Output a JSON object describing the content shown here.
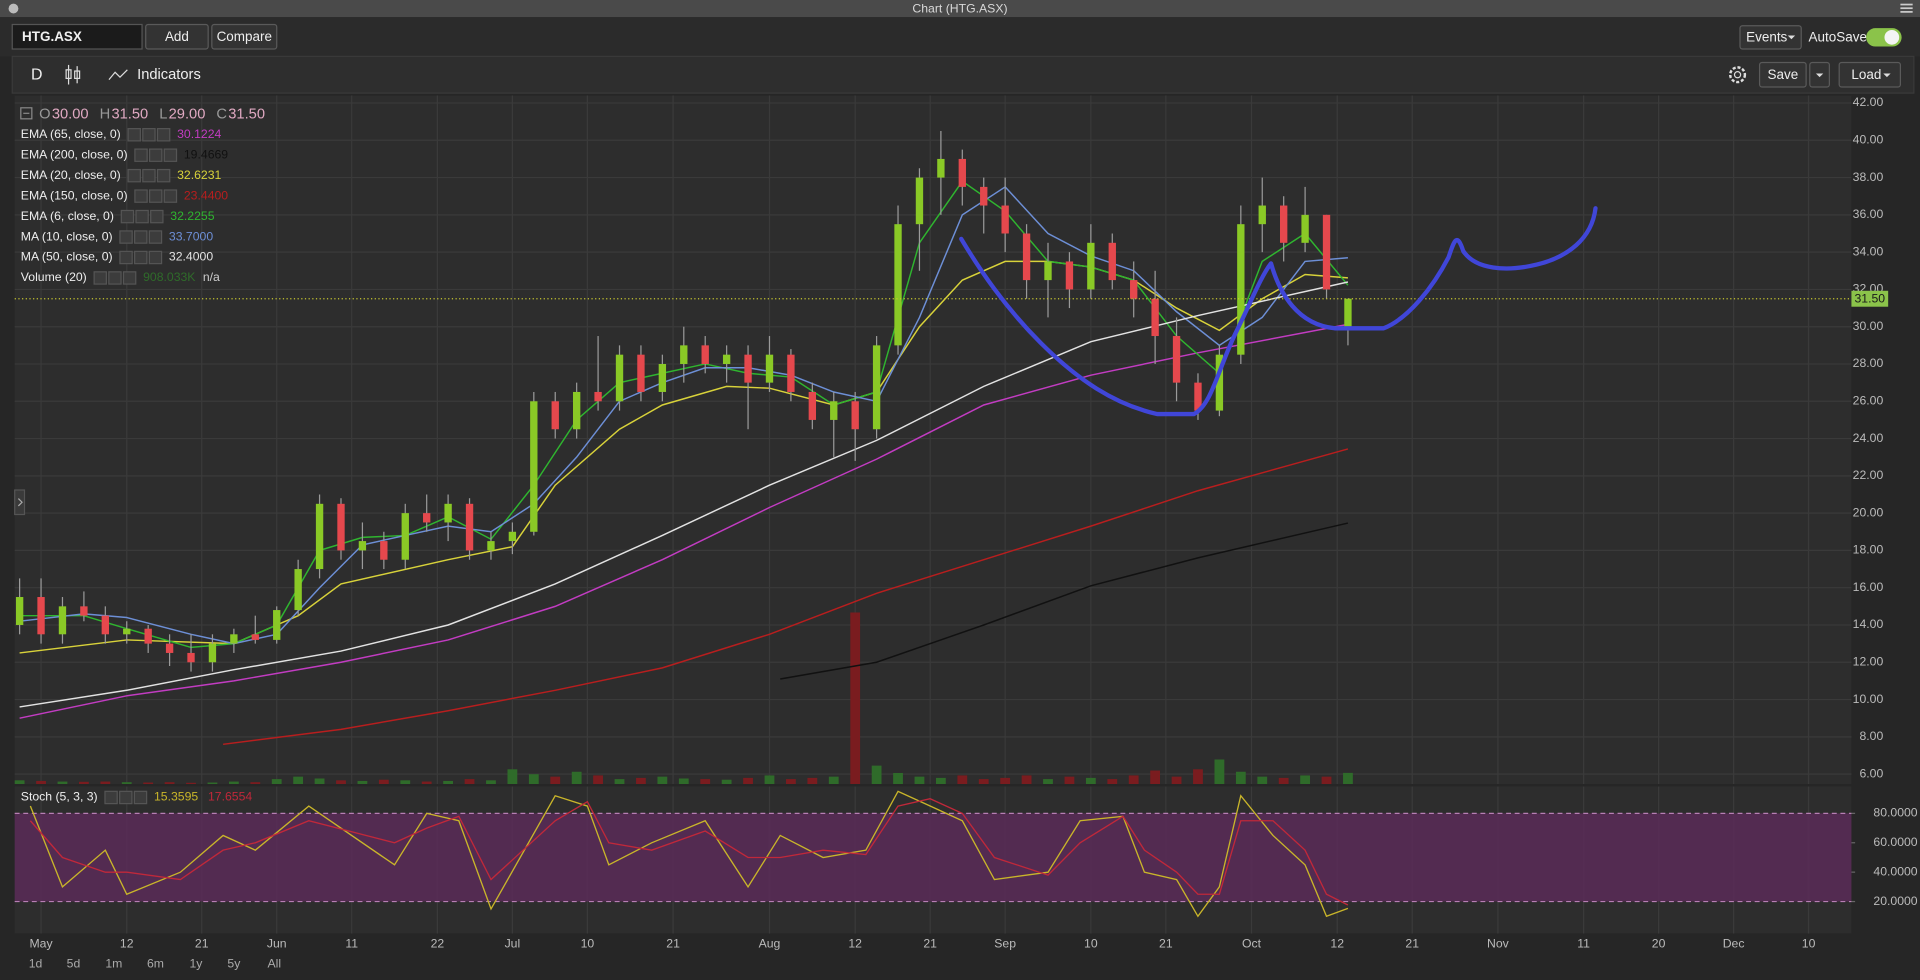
{
  "window": {
    "title": "Chart (HTG.ASX)"
  },
  "toolbar": {
    "symbol": "HTG.ASX",
    "buttons": [
      "Add",
      "Compare"
    ],
    "events": "Events",
    "autosave": "AutoSave"
  },
  "chart_toolbar": {
    "period": "D",
    "indicators": "Indicators",
    "save": "Save",
    "load": "Load"
  },
  "range_buttons": [
    "1d",
    "5d",
    "1m",
    "6m",
    "1y",
    "5y",
    "All"
  ],
  "chart_data": [
    {
      "type": "candlestick",
      "grid": true,
      "header": {
        "letters": [
          "O",
          "H",
          "L",
          "C"
        ],
        "values": [
          30,
          31.5,
          29,
          31.5
        ],
        "value_labels": [
          "30.00",
          "31.50",
          "29.00",
          "31.50"
        ]
      },
      "x": [
        0,
        2,
        4,
        6,
        8,
        10,
        12,
        14,
        16,
        18,
        20,
        22,
        24,
        26,
        28,
        30,
        32,
        34,
        36,
        38,
        40,
        42,
        44,
        46,
        48,
        50,
        52,
        54,
        56,
        58,
        60,
        62,
        64,
        66,
        68,
        70,
        72,
        74,
        76,
        78,
        80,
        82,
        84,
        86,
        88,
        90,
        92,
        94,
        96,
        98,
        100,
        102,
        104,
        106,
        108,
        110,
        112,
        114,
        116,
        118,
        120,
        122,
        124
      ],
      "open": [
        14,
        15.5,
        13.5,
        15,
        14.5,
        13.5,
        13.8,
        13,
        12.5,
        12,
        13,
        13.5,
        13.2,
        14.8,
        17,
        20.5,
        18,
        18.5,
        17.5,
        20,
        19.5,
        20.5,
        18,
        18.5,
        19,
        26,
        24.5,
        26.5,
        26,
        28.5,
        26.5,
        28,
        29,
        28,
        28.5,
        27,
        28.5,
        26.5,
        25,
        26,
        24.5,
        29,
        35.5,
        38,
        39,
        37.5,
        36.5,
        35,
        32.5,
        33.5,
        32,
        34.5,
        32.5,
        31.5,
        29.5,
        27,
        25.5,
        28.5,
        35.5,
        36.5,
        34.5,
        36,
        30
      ],
      "high": [
        16.5,
        16.5,
        15.5,
        15.8,
        15,
        14.2,
        14,
        13.5,
        13.5,
        13.5,
        13.8,
        14.5,
        15,
        17.5,
        21,
        20.8,
        19.5,
        19,
        20.5,
        21,
        21,
        20.8,
        19,
        19.5,
        26.5,
        26.5,
        27,
        29.5,
        29,
        29,
        28.5,
        30,
        29.5,
        29,
        29,
        29.5,
        28.8,
        27,
        26.5,
        26.5,
        29.5,
        36.5,
        38.5,
        40.5,
        39.5,
        38,
        38,
        35.5,
        34.5,
        34,
        35.5,
        35,
        33.5,
        33,
        30.5,
        27.5,
        29,
        36.5,
        38,
        37,
        37.5,
        36,
        31.5
      ],
      "low": [
        13.5,
        13,
        13,
        14.2,
        13,
        13,
        12.5,
        11.8,
        11.5,
        11.5,
        12.5,
        13,
        13,
        14.5,
        16.5,
        17.5,
        17,
        17,
        17,
        19,
        18.5,
        17.5,
        17.5,
        17.8,
        18.8,
        24,
        24,
        25.5,
        25.5,
        26,
        26,
        27,
        27.5,
        27,
        24.5,
        26.5,
        26,
        24.5,
        23,
        22.8,
        24,
        28.5,
        33,
        36,
        36.5,
        35,
        34,
        31.5,
        30.5,
        31,
        31.5,
        32,
        30.5,
        28,
        26,
        25,
        25.2,
        28,
        34,
        33.5,
        34,
        31.5,
        29
      ],
      "close": [
        15.5,
        13.5,
        15,
        14.5,
        13.5,
        13.8,
        13,
        12.5,
        12,
        13,
        13.5,
        13.2,
        14.8,
        17,
        20.5,
        18,
        18.5,
        17.5,
        20,
        19.5,
        20.5,
        18,
        18.5,
        19,
        26,
        24.5,
        26.5,
        26,
        28.5,
        26.5,
        28,
        29,
        28,
        28.5,
        27,
        28.5,
        26.5,
        25,
        26,
        24.5,
        29,
        35.5,
        38,
        39,
        37.5,
        36.5,
        35,
        32.5,
        33.5,
        32,
        34.5,
        32.5,
        31.5,
        29.5,
        27,
        25.5,
        28.5,
        35.5,
        36.5,
        34.5,
        36,
        32,
        31.5
      ],
      "up_color": "#8ac926",
      "down_color": "#e5484d",
      "last_price_label": "31.50",
      "volume": {
        "name": "Volume (20)",
        "value_label": "908.033K",
        "na_label": "n/a",
        "up_color": "#2f6b2a",
        "down_color": "#7a1c1f",
        "values": [
          300000,
          250000,
          200000,
          180000,
          200000,
          150000,
          120000,
          150000,
          100000,
          120000,
          200000,
          150000,
          400000,
          600000,
          450000,
          300000,
          250000,
          350000,
          300000,
          200000,
          250000,
          400000,
          300000,
          1200000,
          800000,
          600000,
          1000000,
          700000,
          400000,
          500000,
          600000,
          450000,
          400000,
          350000,
          500000,
          700000,
          400000,
          500000,
          600000,
          14000000,
          1500000,
          900000,
          600000,
          500000,
          700000,
          400000,
          500000,
          700000,
          400000,
          600000,
          500000,
          400000,
          700000,
          1100000,
          600000,
          1200000,
          2000000,
          1000000,
          600000,
          500000,
          700000,
          600000,
          908033
        ]
      },
      "series": [
        {
          "name": "EMA (65, close, 0)",
          "color": "#c23cc2",
          "value_label": "30.1224",
          "x": [
            0,
            10,
            20,
            30,
            40,
            50,
            60,
            70,
            80,
            90,
            100,
            110,
            124
          ],
          "values": [
            9,
            10.2,
            11,
            12,
            13.2,
            15,
            17.5,
            20.3,
            22.9,
            25.8,
            27.4,
            28.6,
            30.1224
          ]
        },
        {
          "name": "EMA (200, close, 0)",
          "color": "#111111",
          "value_label": "19.4669",
          "x": [
            71,
            80,
            90,
            100,
            110,
            124
          ],
          "values": [
            11.1,
            12,
            14,
            16.1,
            17.6,
            19.4669
          ]
        },
        {
          "name": "EMA (20, close, 0)",
          "color": "#d8d23a",
          "value_label": "32.6231",
          "x": [
            0,
            10,
            20,
            26,
            30,
            40,
            46,
            50,
            56,
            60,
            66,
            70,
            76,
            80,
            84,
            88,
            92,
            96,
            100,
            104,
            108,
            112,
            116,
            120,
            124
          ],
          "values": [
            12.5,
            13.2,
            13,
            14.5,
            16.2,
            17.5,
            18.2,
            21.5,
            24.5,
            25.8,
            26.8,
            26.7,
            25.8,
            26.5,
            30,
            32.5,
            33.5,
            33.5,
            33.2,
            32.5,
            31,
            29.8,
            31.5,
            32.8,
            32.6231
          ]
        },
        {
          "name": "EMA (150, close, 0)",
          "color": "#b81e1e",
          "value_label": "23.4400",
          "x": [
            19,
            30,
            40,
            50,
            60,
            70,
            80,
            90,
            100,
            110,
            124
          ],
          "values": [
            7.6,
            8.4,
            9.4,
            10.5,
            11.7,
            13.5,
            15.7,
            17.5,
            19.3,
            21.2,
            23.44
          ]
        },
        {
          "name": "EMA (6, close, 0)",
          "color": "#2fb52f",
          "value_label": "32.2255",
          "x": [
            0,
            6,
            10,
            16,
            20,
            24,
            28,
            32,
            36,
            40,
            44,
            48,
            52,
            56,
            60,
            64,
            68,
            72,
            76,
            80,
            84,
            88,
            92,
            96,
            100,
            104,
            108,
            112,
            116,
            120,
            124
          ],
          "values": [
            14.5,
            14.5,
            13.8,
            12.8,
            13,
            14,
            18,
            18.7,
            18.8,
            19.8,
            18.6,
            21.5,
            25,
            27,
            27.5,
            28,
            27.5,
            27.3,
            25.8,
            26.5,
            34.5,
            37.8,
            36.2,
            33.5,
            33.2,
            32.5,
            29.5,
            27.5,
            33.5,
            35,
            32.2255
          ]
        },
        {
          "name": "MA (10, close, 0)",
          "color": "#6d8fd6",
          "value_label": "33.7000",
          "x": [
            0,
            6,
            10,
            16,
            20,
            24,
            28,
            32,
            36,
            40,
            44,
            48,
            52,
            56,
            60,
            64,
            68,
            72,
            76,
            80,
            84,
            88,
            92,
            96,
            100,
            104,
            108,
            112,
            116,
            120,
            124
          ],
          "values": [
            14.2,
            14.6,
            14.4,
            13.5,
            13,
            13.5,
            16,
            18.3,
            18.8,
            19.3,
            19,
            20.5,
            23,
            26,
            27,
            27.8,
            27.8,
            27.4,
            26.5,
            26,
            30.5,
            36,
            37.5,
            35,
            33.8,
            33,
            30.8,
            29,
            30.5,
            33.5,
            33.7
          ]
        },
        {
          "name": "MA (50, close, 0)",
          "color": "#e2e2e2",
          "value_label": "32.4000",
          "x": [
            0,
            10,
            20,
            30,
            40,
            50,
            60,
            70,
            80,
            90,
            100,
            110,
            124
          ],
          "values": [
            9.6,
            10.5,
            11.6,
            12.6,
            14,
            16.2,
            18.8,
            21.5,
            23.9,
            26.8,
            29.2,
            30.6,
            32.4
          ]
        }
      ],
      "xlim": [
        -0.46,
        171
      ],
      "xticks": [
        {
          "value": 2,
          "label": "May"
        },
        {
          "value": 10,
          "label": "12"
        },
        {
          "value": 17,
          "label": "21"
        },
        {
          "value": 24,
          "label": "Jun"
        },
        {
          "value": 31,
          "label": "11"
        },
        {
          "value": 39,
          "label": "22"
        },
        {
          "value": 46,
          "label": "Jul"
        },
        {
          "value": 53,
          "label": "10"
        },
        {
          "value": 61,
          "label": "21"
        },
        {
          "value": 70,
          "label": "Aug"
        },
        {
          "value": 78,
          "label": "12"
        },
        {
          "value": 85,
          "label": "21"
        },
        {
          "value": 92,
          "label": "Sep"
        },
        {
          "value": 100,
          "label": "10"
        },
        {
          "value": 107,
          "label": "21"
        },
        {
          "value": 115,
          "label": "Oct"
        },
        {
          "value": 123,
          "label": "12"
        },
        {
          "value": 130,
          "label": "21"
        },
        {
          "value": 138,
          "label": "Nov"
        },
        {
          "value": 146,
          "label": "11"
        },
        {
          "value": 153,
          "label": "20"
        },
        {
          "value": 160,
          "label": "Dec"
        },
        {
          "value": 167,
          "label": "10"
        }
      ],
      "ylim": [
        5.47,
        42.4
      ],
      "yticks": [
        {
          "value": 6,
          "label": "6.00"
        },
        {
          "value": 8,
          "label": "8.00"
        },
        {
          "value": 10,
          "label": "10.00"
        },
        {
          "value": 12,
          "label": "12.00"
        },
        {
          "value": 14,
          "label": "14.00"
        },
        {
          "value": 16,
          "label": "16.00"
        },
        {
          "value": 18,
          "label": "18.00"
        },
        {
          "value": 20,
          "label": "20.00"
        },
        {
          "value": 22,
          "label": "22.00"
        },
        {
          "value": 24,
          "label": "24.00"
        },
        {
          "value": 26,
          "label": "26.00"
        },
        {
          "value": 28,
          "label": "28.00"
        },
        {
          "value": 30,
          "label": "30.00"
        },
        {
          "value": 32,
          "label": "32.00"
        },
        {
          "value": 34,
          "label": "34.00"
        },
        {
          "value": 36,
          "label": "36.00"
        },
        {
          "value": 38,
          "label": "38.00"
        },
        {
          "value": 40,
          "label": "40.00"
        },
        {
          "value": 42,
          "label": "42.00"
        }
      ]
    },
    {
      "type": "line",
      "label": "Stoch (5, 3, 3)",
      "band_fill": "#5b2b58",
      "band_line": "#b77fb4",
      "bands": [
        20,
        80
      ],
      "series": [
        {
          "color": "#c9b52a",
          "value_label": "15.3595",
          "x": [
            1,
            4,
            8,
            10,
            15,
            19,
            22,
            27,
            35,
            38,
            41,
            44,
            50,
            53,
            55,
            59,
            64,
            68,
            71,
            75,
            79,
            82,
            85,
            88,
            91,
            96,
            99,
            103,
            105,
            108,
            110,
            112,
            114,
            117,
            120,
            122,
            124
          ],
          "values": [
            85,
            30,
            55,
            25,
            40,
            65,
            55,
            85,
            45,
            80,
            75,
            15,
            92,
            85,
            45,
            60,
            75,
            30,
            65,
            50,
            55,
            95,
            85,
            75,
            35,
            40,
            75,
            78,
            40,
            35,
            10,
            30,
            92,
            65,
            45,
            10,
            15.3595
          ]
        },
        {
          "color": "#c0283a",
          "value_label": "17.6554",
          "x": [
            1,
            4,
            8,
            10,
            15,
            19,
            22,
            27,
            35,
            38,
            41,
            44,
            50,
            53,
            55,
            59,
            64,
            68,
            71,
            75,
            79,
            82,
            85,
            88,
            91,
            96,
            99,
            103,
            105,
            108,
            110,
            112,
            114,
            117,
            120,
            122,
            124
          ],
          "values": [
            75,
            50,
            40,
            40,
            35,
            55,
            60,
            75,
            60,
            70,
            78,
            35,
            75,
            88,
            60,
            55,
            68,
            50,
            50,
            55,
            52,
            85,
            90,
            80,
            50,
            38,
            60,
            78,
            55,
            40,
            25,
            25,
            75,
            75,
            55,
            25,
            17.6554
          ]
        }
      ],
      "ylim": [
        -1.7,
        98.3
      ],
      "yticks": [
        {
          "value": 20,
          "label": "20.0000"
        },
        {
          "value": 40,
          "label": "40.0000"
        },
        {
          "value": 60,
          "label": "60.0000"
        },
        {
          "value": 80,
          "label": "80.0000"
        }
      ]
    }
  ]
}
